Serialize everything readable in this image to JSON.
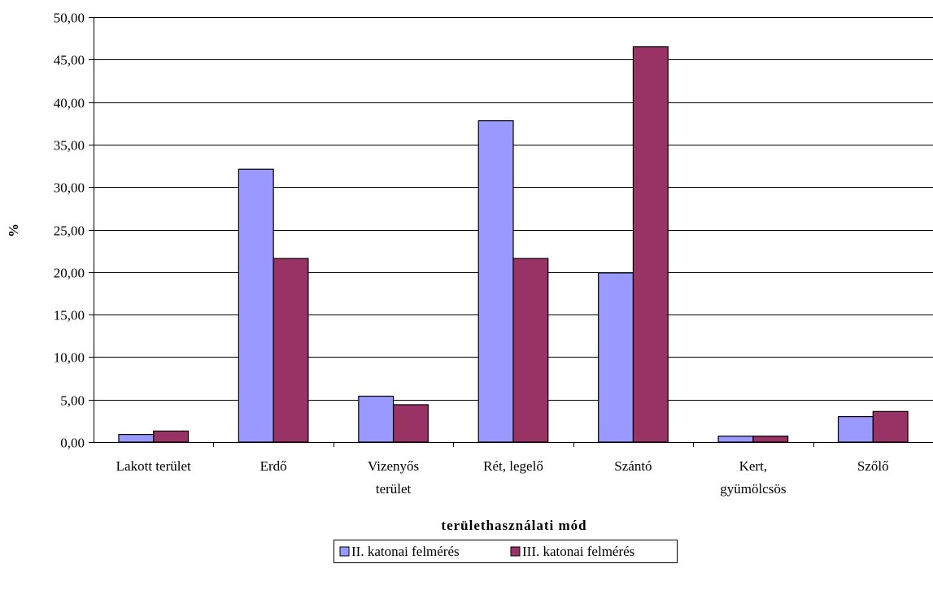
{
  "chart_data": {
    "type": "bar",
    "title": "",
    "xlabel": "területhasználati mód",
    "ylabel": "%",
    "ylim": [
      0,
      50
    ],
    "ytick_step": 5,
    "ytick_labels": [
      "0,00",
      "5,00",
      "10,00",
      "15,00",
      "20,00",
      "25,00",
      "30,00",
      "35,00",
      "40,00",
      "45,00",
      "50,00"
    ],
    "categories": [
      [
        "Lakott terület"
      ],
      [
        "Erdő"
      ],
      [
        "Vizenyős",
        "terület"
      ],
      [
        "Rét, legelő"
      ],
      [
        "Szántó"
      ],
      [
        "Kert,",
        "gyümölcsös"
      ],
      [
        "Szőlő"
      ]
    ],
    "series": [
      {
        "name": "II. katonai felmérés",
        "color": "#9999ff",
        "values": [
          0.9,
          32.1,
          5.4,
          37.8,
          19.9,
          0.7,
          3.0
        ]
      },
      {
        "name": "III. katonai felmérés",
        "color": "#993366",
        "values": [
          1.3,
          21.6,
          4.4,
          21.6,
          46.5,
          0.7,
          3.6
        ]
      }
    ],
    "grid": true,
    "legend_position": "bottom"
  }
}
